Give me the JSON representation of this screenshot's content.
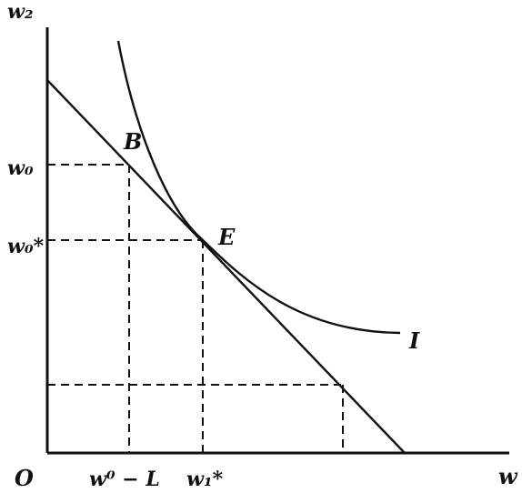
{
  "labels": {
    "y_axis": "w₂",
    "x_axis": "w",
    "origin": "O",
    "w0": "w₀",
    "w0_star": "w₀*",
    "w0_minus_L": "w⁰ − L",
    "w1_star": "w₁*",
    "point_B": "B",
    "point_E": "E",
    "curve_I": "I"
  }
}
